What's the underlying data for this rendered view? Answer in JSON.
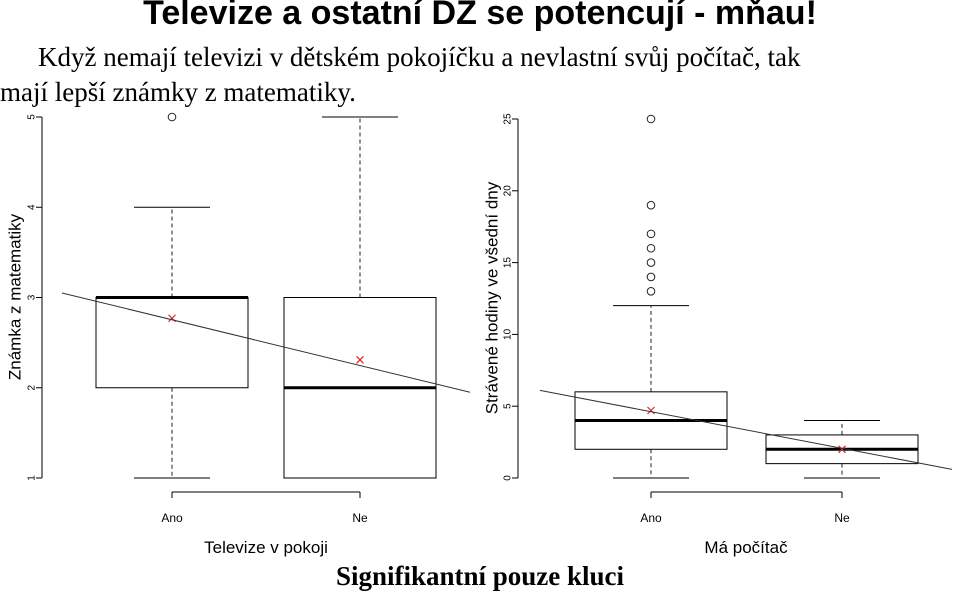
{
  "title": "Televize a ostatní DZ se potencují - mňau!",
  "subtitle_line1": "Když nemají televizi v dětském pokojíčku a nevlastní svůj počítač, tak",
  "subtitle_line2": "mají lepší známky z matematiky.",
  "footer": "Signifikantní pouze kluci",
  "colors": {
    "box": "#000000",
    "mean_marker": "#d62728",
    "trend_line": "#333333"
  },
  "chart_data": [
    {
      "type": "box",
      "xlabel": "Televize v pokoji",
      "ylabel": "Známka z matematiky",
      "ylim": [
        1,
        5
      ],
      "yticks": [
        "1",
        "2",
        "3",
        "4",
        "5"
      ],
      "categories": [
        "Ano",
        "Ne"
      ],
      "boxes": [
        {
          "category": "Ano",
          "whisker_low": 1,
          "q1": 2,
          "median": 3,
          "q3": 3,
          "whisker_high": 4,
          "mean": 2.77,
          "outliers": [
            5
          ]
        },
        {
          "category": "Ne",
          "whisker_low": 1,
          "q1": 1,
          "median": 2,
          "q3": 3,
          "whisker_high": 5,
          "mean": 2.31,
          "outliers": []
        }
      ],
      "trend_line": {
        "y_start": 3.05,
        "y_end": 1.95
      }
    },
    {
      "type": "box",
      "xlabel": "Má počítač",
      "ylabel": "Strávené hodiny ve všední dny",
      "ylim": [
        0,
        25
      ],
      "yticks": [
        "0",
        "5",
        "10",
        "15",
        "20",
        "25"
      ],
      "categories": [
        "Ano",
        "Ne"
      ],
      "boxes": [
        {
          "category": "Ano",
          "whisker_low": 0,
          "q1": 2,
          "median": 4,
          "q3": 6,
          "whisker_high": 12,
          "mean": 4.7,
          "outliers": [
            13,
            14,
            15,
            16,
            17,
            19,
            25
          ]
        },
        {
          "category": "Ne",
          "whisker_low": 0,
          "q1": 1,
          "median": 2,
          "q3": 3,
          "whisker_high": 4,
          "mean": 2.0,
          "outliers": []
        }
      ],
      "trend_line": {
        "y_start": 6.1,
        "y_end": 0.6
      }
    }
  ]
}
